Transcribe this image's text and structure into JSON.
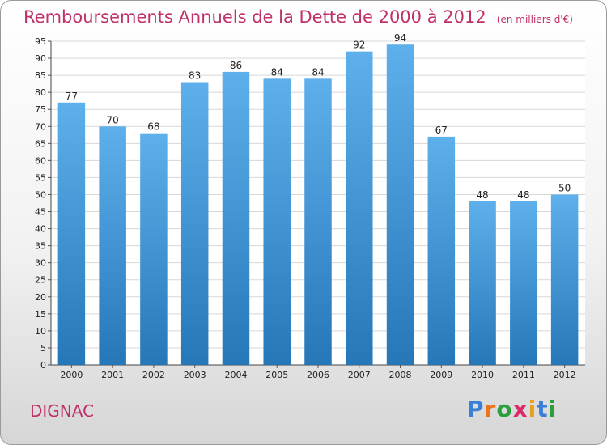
{
  "chart_data": {
    "type": "bar",
    "title": "Remboursements Annuels de la Dette de 2000 à 2012",
    "subtitle": "(en milliers d'€)",
    "categories": [
      "2000",
      "2001",
      "2002",
      "2003",
      "2004",
      "2005",
      "2006",
      "2007",
      "2008",
      "2009",
      "2010",
      "2011",
      "2012"
    ],
    "values": [
      77,
      70,
      68,
      83,
      86,
      84,
      84,
      92,
      94,
      67,
      48,
      48,
      50
    ],
    "ylim": [
      0,
      95
    ],
    "ytick_step": 5,
    "xlabel": "",
    "ylabel": "",
    "grid": true,
    "bar_color_top": "#5eb0ec",
    "bar_color_bottom": "#2677b8"
  },
  "commune": "DIGNAC",
  "logo": {
    "letters": [
      "P",
      "r",
      "o",
      "x",
      "i",
      "t",
      "i"
    ],
    "colors": [
      "#3a7fd6",
      "#e8741c",
      "#2aa03c",
      "#d92a6a",
      "#e8a01c",
      "#3a7fd6",
      "#2aa03c"
    ]
  }
}
